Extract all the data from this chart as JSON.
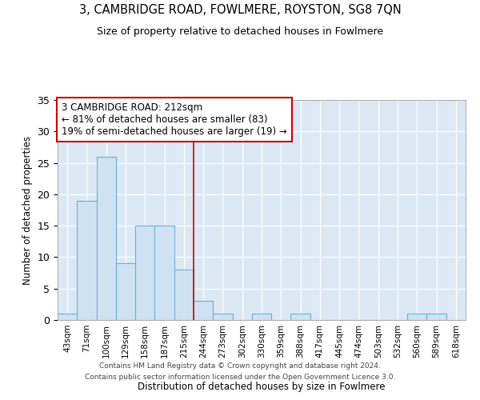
{
  "title1": "3, CAMBRIDGE ROAD, FOWLMERE, ROYSTON, SG8 7QN",
  "title2": "Size of property relative to detached houses in Fowlmere",
  "xlabel": "Distribution of detached houses by size in Fowlmere",
  "ylabel": "Number of detached properties",
  "footer1": "Contains HM Land Registry data © Crown copyright and database right 2024.",
  "footer2": "Contains public sector information licensed under the Open Government Licence 3.0.",
  "annotation_line1": "3 CAMBRIDGE ROAD: 212sqm",
  "annotation_line2": "← 81% of detached houses are smaller (83)",
  "annotation_line3": "19% of semi-detached houses are larger (19) →",
  "bins": [
    "43sqm",
    "71sqm",
    "100sqm",
    "129sqm",
    "158sqm",
    "187sqm",
    "215sqm",
    "244sqm",
    "273sqm",
    "302sqm",
    "330sqm",
    "359sqm",
    "388sqm",
    "417sqm",
    "445sqm",
    "474sqm",
    "503sqm",
    "532sqm",
    "560sqm",
    "589sqm",
    "618sqm"
  ],
  "values": [
    1,
    19,
    26,
    9,
    15,
    15,
    8,
    3,
    1,
    0,
    1,
    0,
    1,
    0,
    0,
    0,
    0,
    0,
    1,
    1,
    0
  ],
  "bar_color": "#cfe2f3",
  "bar_edge_color": "#6aaed6",
  "vline_x_index": 6.5,
  "vline_color": "#cc0000",
  "annotation_box_color": "#cc0000",
  "background_color": "#ffffff",
  "plot_bg_color": "#dce9f5",
  "ylim": [
    0,
    35
  ],
  "yticks": [
    0,
    5,
    10,
    15,
    20,
    25,
    30,
    35
  ]
}
